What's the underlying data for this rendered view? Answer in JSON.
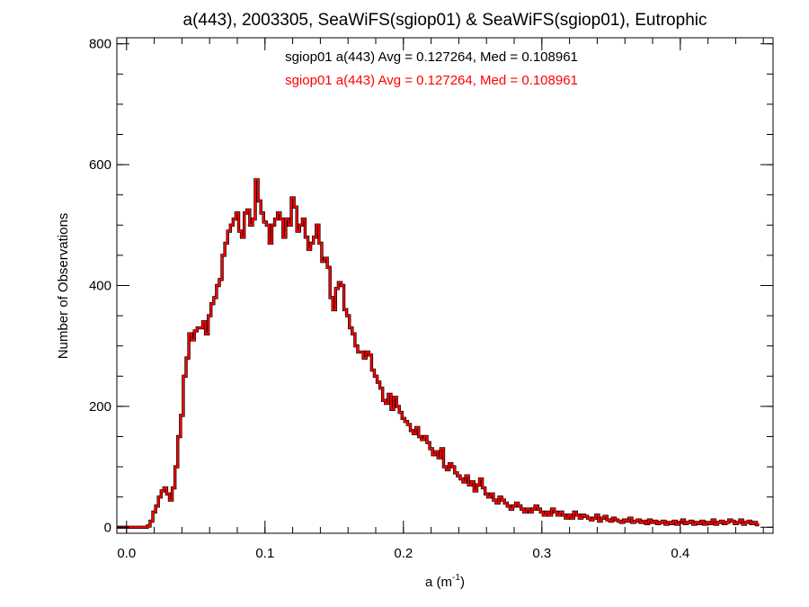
{
  "chart_data": {
    "type": "histogram",
    "title": "a(443), 2003305, SeaWiFS(sgiop01) & SeaWiFS(sgiop01), Eutrophic",
    "xlabel": "a (m",
    "xlabel_sup": "-1",
    "xlabel_close": ")",
    "ylabel": "Number of Observations",
    "xlim": [
      -0.007,
      0.467
    ],
    "ylim": [
      -10,
      810
    ],
    "x_ticks": [
      0.0,
      0.1,
      0.2,
      0.3,
      0.4
    ],
    "x_tick_labels": [
      "0.0",
      "0.1",
      "0.2",
      "0.3",
      "0.4"
    ],
    "y_ticks": [
      0,
      200,
      400,
      600,
      800
    ],
    "y_tick_labels": [
      "0",
      "200",
      "400",
      "600",
      "800"
    ],
    "grid": false,
    "series_colors": [
      "#000000",
      "#ff0000"
    ],
    "annotations": [
      {
        "text": "sgiop01 a(443) Avg = 0.127264, Med = 0.108961",
        "color": "#000000"
      },
      {
        "text": "sgiop01 a(443) Avg = 0.127264, Med = 0.108961",
        "color": "#ff0000"
      }
    ],
    "bin_start": -0.007,
    "bin_width": 0.002,
    "counts": [
      0,
      0,
      0,
      0,
      0,
      0,
      0,
      0,
      0,
      0,
      0,
      2,
      10,
      25,
      35,
      50,
      60,
      65,
      55,
      45,
      65,
      100,
      150,
      185,
      250,
      280,
      320,
      310,
      325,
      330,
      330,
      340,
      320,
      350,
      370,
      380,
      400,
      410,
      450,
      470,
      490,
      500,
      510,
      520,
      490,
      480,
      520,
      525,
      500,
      510,
      575,
      540,
      520,
      505,
      500,
      470,
      500,
      510,
      520,
      510,
      480,
      510,
      500,
      545,
      530,
      490,
      500,
      510,
      480,
      460,
      470,
      480,
      500,
      470,
      440,
      445,
      430,
      380,
      360,
      395,
      405,
      400,
      360,
      350,
      330,
      320,
      300,
      290,
      290,
      280,
      290,
      285,
      260,
      250,
      240,
      230,
      210,
      205,
      220,
      195,
      215,
      200,
      190,
      180,
      175,
      170,
      160,
      155,
      165,
      150,
      145,
      150,
      140,
      130,
      120,
      125,
      115,
      130,
      100,
      95,
      105,
      100,
      90,
      85,
      80,
      75,
      85,
      70,
      75,
      60,
      70,
      80,
      65,
      55,
      50,
      55,
      45,
      40,
      50,
      45,
      40,
      35,
      30,
      35,
      40,
      35,
      30,
      25,
      30,
      25,
      30,
      35,
      30,
      25,
      20,
      25,
      20,
      30,
      25,
      20,
      25,
      20,
      15,
      20,
      15,
      25,
      20,
      15,
      20,
      18,
      15,
      12,
      15,
      20,
      10,
      15,
      18,
      12,
      10,
      15,
      12,
      10,
      8,
      12,
      10,
      15,
      8,
      10,
      12,
      8,
      10,
      6,
      12,
      8,
      10,
      6,
      8,
      10,
      5,
      8,
      6,
      10,
      5,
      8,
      12,
      6,
      8,
      10,
      5,
      8,
      6,
      10,
      5,
      8,
      6,
      12,
      5,
      8,
      10,
      6,
      8,
      12,
      10,
      6,
      8,
      12,
      5,
      8,
      10,
      6,
      8,
      4
    ]
  }
}
